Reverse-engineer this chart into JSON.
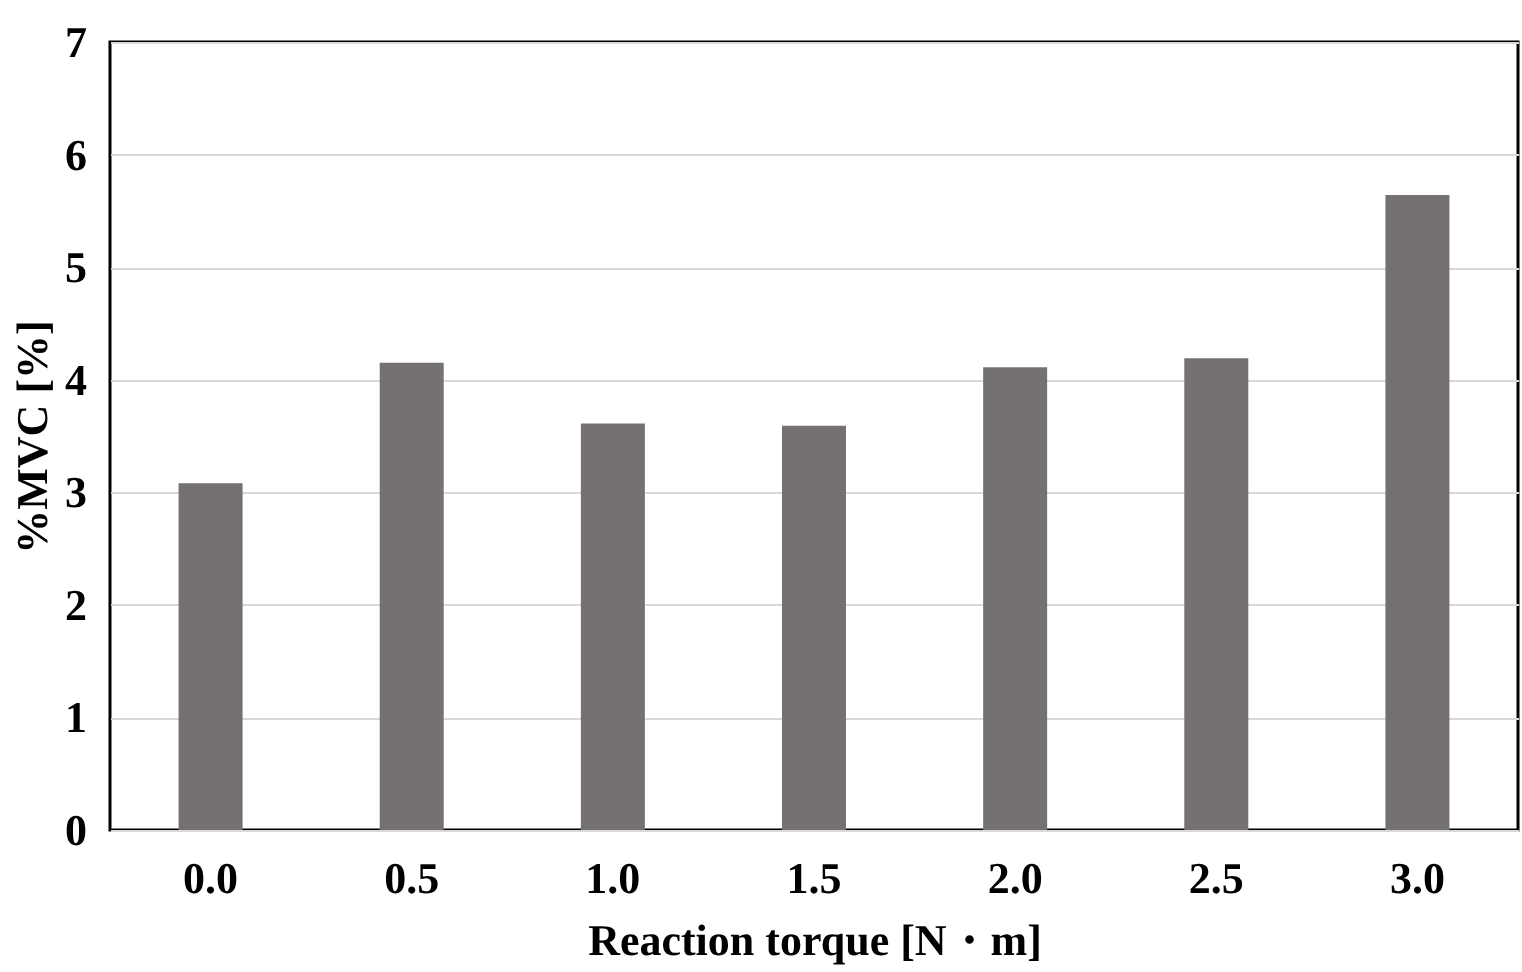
{
  "chart_data": {
    "type": "bar",
    "xlabel": "Reaction  torque [N・m]",
    "ylabel": "%MVC [%]",
    "categories": [
      "0.0",
      "0.5",
      "1.0",
      "1.5",
      "2.0",
      "2.5",
      "3.0"
    ],
    "values": [
      3.08,
      4.15,
      3.61,
      3.59,
      4.11,
      4.19,
      5.64
    ],
    "color": "#767171",
    "ylim": [
      0,
      7
    ],
    "yticks": [
      0,
      1,
      2,
      3,
      4,
      5,
      6,
      7
    ],
    "grid": "y"
  }
}
